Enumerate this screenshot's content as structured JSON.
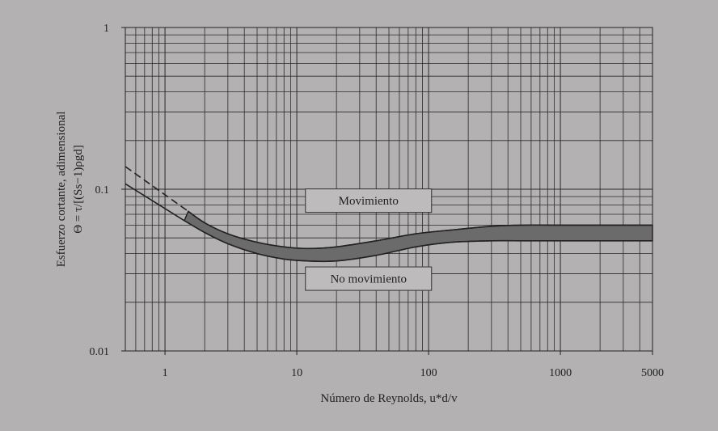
{
  "chart_data": {
    "type": "line",
    "xscale": "log",
    "yscale": "log",
    "xlim": [
      0.5,
      5000
    ],
    "ylim": [
      0.01,
      1
    ],
    "grid": true,
    "xlabel": "Número de Reynolds, u*d/v",
    "ylabel_line1": "Esfuerzo cortante, adimensional",
    "ylabel_line2": "Θ = τ/[(Ss−1)ρgd]",
    "xticks": [
      {
        "value": 1,
        "label": "1"
      },
      {
        "value": 10,
        "label": "10"
      },
      {
        "value": 100,
        "label": "100"
      },
      {
        "value": 1000,
        "label": "1000"
      },
      {
        "value": 5000,
        "label": "5000"
      }
    ],
    "yticks": [
      {
        "value": 0.01,
        "label": "0.01"
      },
      {
        "value": 0.1,
        "label": "0.1"
      },
      {
        "value": 1,
        "label": "1"
      }
    ],
    "band_upper": {
      "x": [
        1.5,
        2,
        3,
        5,
        8,
        12,
        20,
        40,
        80,
        150,
        300,
        500,
        1000,
        5000
      ],
      "y": [
        0.073,
        0.062,
        0.053,
        0.047,
        0.044,
        0.043,
        0.044,
        0.048,
        0.053,
        0.056,
        0.059,
        0.06,
        0.06,
        0.06
      ]
    },
    "band_lower": {
      "x": [
        1.4,
        2,
        3,
        5,
        8,
        12,
        20,
        40,
        80,
        150,
        300,
        500,
        1000,
        5000
      ],
      "y": [
        0.064,
        0.054,
        0.046,
        0.04,
        0.037,
        0.036,
        0.036,
        0.039,
        0.044,
        0.047,
        0.048,
        0.048,
        0.048,
        0.048
      ]
    },
    "solid_lead": {
      "x": [
        0.5,
        1.4
      ],
      "y": [
        0.108,
        0.064
      ]
    },
    "dashed_lead": {
      "x": [
        0.5,
        1.5
      ],
      "y": [
        0.138,
        0.073
      ]
    },
    "regions": [
      {
        "label": "Movimiento",
        "x_center": 35,
        "y_center": 0.085
      },
      {
        "label": "No movimiento",
        "x_center": 35,
        "y_center": 0.028
      }
    ],
    "colors": {
      "background": "#b3b1b2",
      "band_fill": "#6c6b6c",
      "line": "#222222",
      "box_fill": "#bdbbbc"
    }
  }
}
